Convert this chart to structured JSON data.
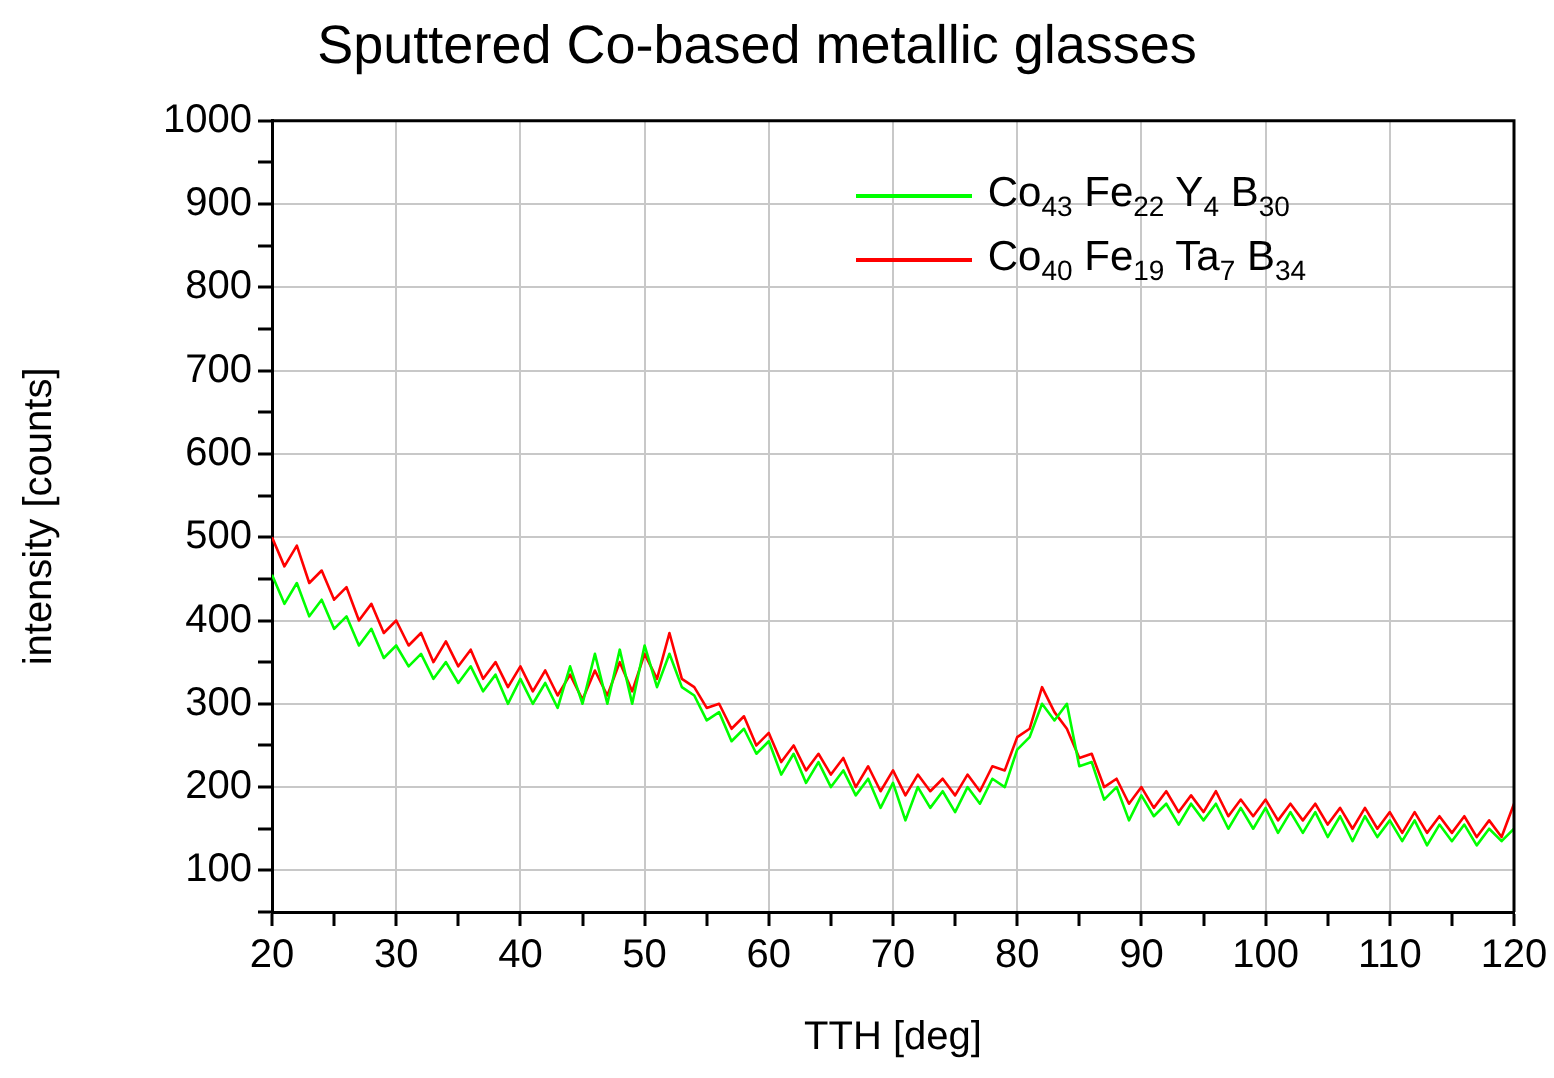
{
  "chart_data": {
    "type": "line",
    "title": "Sputtered Co-based metallic glasses",
    "xlabel": "TTH [deg]",
    "ylabel": "intensity [counts]",
    "x": [
      20,
      21,
      22,
      23,
      24,
      25,
      26,
      27,
      28,
      29,
      30,
      31,
      32,
      33,
      34,
      35,
      36,
      37,
      38,
      39,
      40,
      41,
      42,
      43,
      44,
      45,
      46,
      47,
      48,
      49,
      50,
      51,
      52,
      53,
      54,
      55,
      56,
      57,
      58,
      59,
      60,
      61,
      62,
      63,
      64,
      65,
      66,
      67,
      68,
      69,
      70,
      71,
      72,
      73,
      74,
      75,
      76,
      77,
      78,
      79,
      80,
      81,
      82,
      83,
      84,
      85,
      86,
      87,
      88,
      89,
      90,
      91,
      92,
      93,
      94,
      95,
      96,
      97,
      98,
      99,
      100,
      101,
      102,
      103,
      104,
      105,
      106,
      107,
      108,
      109,
      110,
      111,
      112,
      113,
      114,
      115,
      116,
      117,
      118,
      119,
      120
    ],
    "series": [
      {
        "name": "Co$_{43}$ Fe$_{22}$ Y$_{4}$ B$_{30}$",
        "color": "#00ff00",
        "values": [
          455,
          420,
          445,
          405,
          425,
          390,
          405,
          370,
          390,
          355,
          370,
          345,
          360,
          330,
          350,
          325,
          345,
          315,
          335,
          300,
          330,
          300,
          325,
          295,
          345,
          300,
          360,
          300,
          365,
          300,
          370,
          320,
          360,
          320,
          310,
          280,
          290,
          255,
          270,
          240,
          255,
          215,
          240,
          205,
          230,
          200,
          220,
          190,
          210,
          175,
          205,
          160,
          200,
          175,
          195,
          170,
          200,
          180,
          210,
          200,
          245,
          260,
          300,
          280,
          300,
          225,
          230,
          185,
          200,
          160,
          190,
          165,
          180,
          155,
          180,
          160,
          180,
          150,
          175,
          150,
          175,
          145,
          170,
          145,
          170,
          140,
          165,
          135,
          165,
          140,
          160,
          135,
          160,
          130,
          155,
          135,
          155,
          130,
          150,
          135,
          150
        ]
      },
      {
        "name": "Co$_{40}$ Fe$_{19}$ Ta$_{7}$ B$_{34}$",
        "color": "#ff0000",
        "values": [
          500,
          465,
          490,
          445,
          460,
          425,
          440,
          400,
          420,
          385,
          400,
          370,
          385,
          350,
          375,
          345,
          365,
          330,
          350,
          320,
          345,
          315,
          340,
          310,
          335,
          305,
          340,
          310,
          350,
          315,
          360,
          330,
          385,
          330,
          320,
          295,
          300,
          270,
          285,
          250,
          265,
          230,
          250,
          220,
          240,
          215,
          235,
          200,
          225,
          195,
          220,
          190,
          215,
          195,
          210,
          190,
          215,
          195,
          225,
          220,
          260,
          270,
          320,
          290,
          270,
          235,
          240,
          200,
          210,
          180,
          200,
          175,
          195,
          170,
          190,
          170,
          195,
          165,
          185,
          165,
          185,
          160,
          180,
          160,
          180,
          155,
          175,
          150,
          175,
          150,
          170,
          145,
          170,
          145,
          165,
          145,
          165,
          140,
          160,
          140,
          180
        ]
      }
    ],
    "xlim": [
      20,
      120
    ],
    "xticks": [
      20,
      {
        "value": 25,
        "label": null
      },
      30,
      {
        "value": 35,
        "label": null
      },
      40,
      {
        "value": 45,
        "label": null
      },
      50,
      {
        "value": 55,
        "label": null
      },
      60,
      {
        "value": 65,
        "label": null
      },
      70,
      {
        "value": 75,
        "label": null
      },
      80,
      {
        "value": 85,
        "label": null
      },
      90,
      {
        "value": 95,
        "label": null
      },
      100,
      {
        "value": 105,
        "label": null
      },
      110,
      {
        "value": 115,
        "label": null
      },
      120
    ],
    "ylim": [
      50,
      1000
    ],
    "yticks": [
      {
        "value": 50,
        "label": null
      },
      100,
      {
        "value": 150,
        "label": null
      },
      200,
      {
        "value": 250,
        "label": null
      },
      300,
      {
        "value": 350,
        "label": null
      },
      400,
      {
        "value": 450,
        "label": null
      },
      500,
      {
        "value": 550,
        "label": null
      },
      600,
      {
        "value": 650,
        "label": null
      },
      700,
      {
        "value": 750,
        "label": null
      },
      800,
      {
        "value": 850,
        "label": null
      },
      900,
      {
        "value": 950,
        "label": null
      },
      1000
    ],
    "grid": true,
    "legend": "top right",
    "marker": "none",
    "line_style": "solid"
  }
}
